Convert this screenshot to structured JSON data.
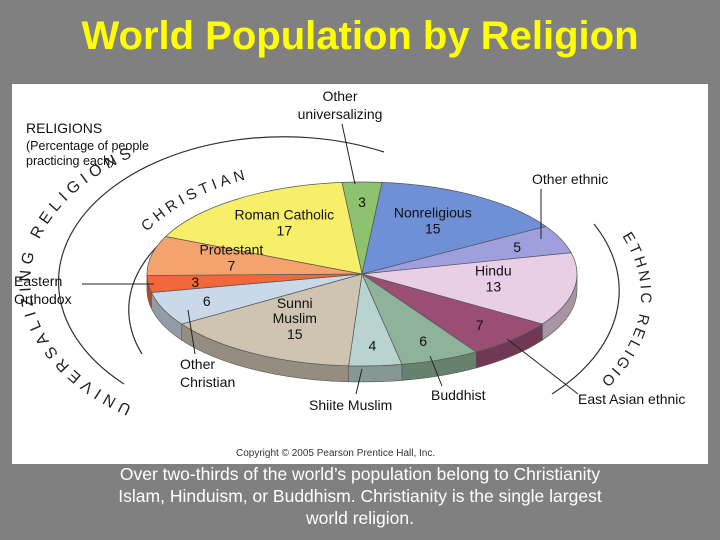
{
  "slide": {
    "title": "World Population by Religion",
    "caption_lines": [
      "Over two-thirds of the world’s population belong to Christianity",
      "Islam, Hinduism, or Buddhism. Christianity is the single largest",
      "world religion."
    ]
  },
  "chart_data": {
    "type": "pie",
    "legend_title": "RELIGIONS",
    "legend_subtitle": [
      "(Percentage of people",
      "practicing each)"
    ],
    "copyright": "Copyright © 2005 Pearson Prentice Hall, Inc.",
    "group_labels": {
      "universalizing": "UNIVERSALIZING RELIGIONS",
      "christian": "CHRISTIAN",
      "ethnic": "ETHNIC RELIGIONS"
    },
    "slices": [
      {
        "key": "other_universalizing",
        "label": "",
        "value": 3,
        "color": "#8dc26f"
      },
      {
        "key": "nonreligious",
        "label": "Nonreligious",
        "value": 15,
        "color": "#6f8fd6"
      },
      {
        "key": "other_ethnic",
        "label": "",
        "value": 5,
        "color": "#9f9fdd"
      },
      {
        "key": "hindu",
        "label": "Hindu",
        "value": 13,
        "color": "#e8cfe5"
      },
      {
        "key": "east_asian_ethnic",
        "label": "",
        "value": 7,
        "color": "#9b4e74"
      },
      {
        "key": "buddhist",
        "label": "",
        "value": 6,
        "color": "#8fb39a"
      },
      {
        "key": "shiite_muslim",
        "label": "",
        "value": 4,
        "color": "#b9d3d0"
      },
      {
        "key": "sunni_muslim",
        "label": "Sunni Muslim",
        "value": 15,
        "color": "#cfc4b2"
      },
      {
        "key": "other_christian",
        "label": "",
        "value": 6,
        "color": "#c9d9ea"
      },
      {
        "key": "eastern_orthodox",
        "label": "",
        "value": 3,
        "color": "#f2683a"
      },
      {
        "key": "protestant",
        "label": "Protestant",
        "value": 7,
        "color": "#f5a36e"
      },
      {
        "key": "roman_catholic",
        "label": "Roman Catholic",
        "value": 17,
        "color": "#f7ef6a"
      }
    ],
    "callouts": {
      "other_universalizing": [
        "Other",
        "universalizing"
      ],
      "other_ethnic": "Other ethnic",
      "eastern_orthodox": [
        "Eastern",
        "Orthodox"
      ],
      "other_christian": [
        "Other",
        "Christian"
      ],
      "shiite_muslim": "Shiite Muslim",
      "buddhist": "Buddhist",
      "east_asian_ethnic": "East Asian ethnic"
    }
  }
}
